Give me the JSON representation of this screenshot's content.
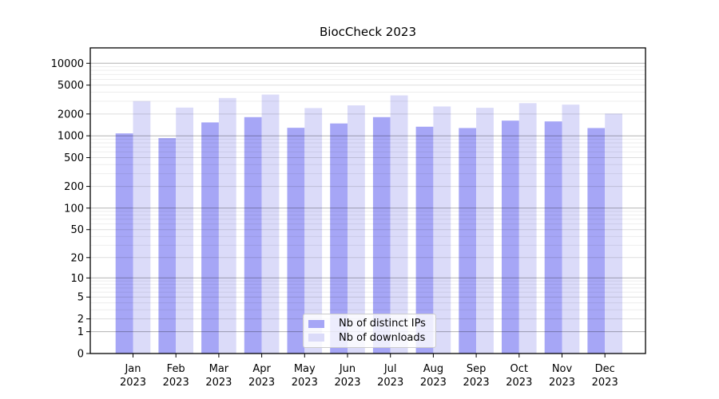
{
  "chart_data": {
    "type": "bar",
    "title": "BiocCheck 2023",
    "categories": [
      "Jan",
      "Feb",
      "Mar",
      "Apr",
      "May",
      "Jun",
      "Jul",
      "Aug",
      "Sep",
      "Oct",
      "Nov",
      "Dec"
    ],
    "year_label": "2023",
    "series": [
      {
        "name": "Nb of distinct IPs",
        "color": "#a6a6f6",
        "values": [
          1080,
          930,
          1530,
          1810,
          1290,
          1480,
          1810,
          1335,
          1280,
          1620,
          1580,
          1280
        ]
      },
      {
        "name": "Nb of downloads",
        "color": "#dbdbf9",
        "values": [
          3005,
          2450,
          3320,
          3700,
          2415,
          2630,
          3610,
          2540,
          2435,
          2820,
          2690,
          2025
        ]
      }
    ],
    "yscale": "log1p",
    "yticks": [
      0,
      1,
      2,
      5,
      10,
      20,
      50,
      100,
      200,
      500,
      1000,
      2000,
      5000,
      10000
    ],
    "ylim": [
      0,
      16400
    ],
    "grid": "both",
    "legend_position": "lower-center",
    "colors": {
      "major_grid": "rgba(0,0,0,0.30)",
      "mid_grid": "rgba(0,0,0,0.13)",
      "minor_grid": "rgba(0,0,0,0.07)",
      "frame": "#000000"
    }
  }
}
